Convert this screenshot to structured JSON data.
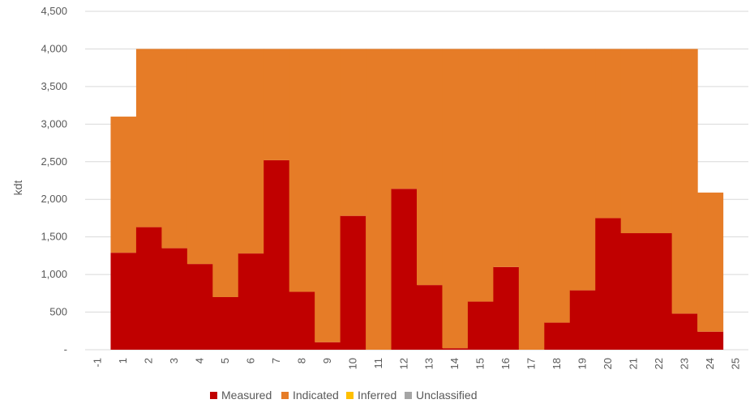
{
  "chart_data": {
    "type": "bar",
    "stacked": true,
    "ylabel": "kdt",
    "ylim": [
      0,
      4500
    ],
    "yticks": [
      0,
      500,
      1000,
      1500,
      2000,
      2500,
      3000,
      3500,
      4000,
      4500
    ],
    "ytick_labels": [
      "-",
      "500",
      "1,000",
      "1,500",
      "2,000",
      "2,500",
      "3,000",
      "3,500",
      "4,000",
      "4,500"
    ],
    "categories": [
      "-1",
      "1",
      "2",
      "3",
      "4",
      "5",
      "6",
      "7",
      "8",
      "9",
      "10",
      "11",
      "12",
      "13",
      "14",
      "15",
      "16",
      "17",
      "18",
      "19",
      "20",
      "21",
      "22",
      "23",
      "24",
      "25"
    ],
    "grid": true,
    "legend_position": "bottom",
    "series": [
      {
        "name": "Measured",
        "color": "#c00000",
        "values": [
          0,
          1290,
          1630,
          1350,
          1140,
          700,
          1280,
          2520,
          770,
          100,
          1780,
          0,
          2140,
          860,
          20,
          640,
          1100,
          0,
          360,
          790,
          1750,
          1550,
          1550,
          480,
          240,
          0
        ]
      },
      {
        "name": "Indicated",
        "color": "#e67c27",
        "values": [
          0,
          1810,
          2370,
          2650,
          2860,
          3300,
          2720,
          1480,
          3230,
          3900,
          2220,
          4000,
          1860,
          3140,
          3980,
          3360,
          2900,
          4000,
          3640,
          3210,
          2250,
          2450,
          2450,
          3520,
          1850,
          0
        ]
      },
      {
        "name": "Inferred",
        "color": "#ffc000",
        "values": [
          0,
          0,
          0,
          0,
          0,
          0,
          0,
          0,
          0,
          0,
          0,
          0,
          0,
          0,
          0,
          0,
          0,
          0,
          0,
          0,
          0,
          0,
          0,
          0,
          0,
          0
        ]
      },
      {
        "name": "Unclassified",
        "color": "#a5a5a5",
        "values": [
          0,
          0,
          0,
          0,
          0,
          0,
          0,
          0,
          0,
          0,
          0,
          0,
          0,
          0,
          0,
          0,
          0,
          0,
          0,
          0,
          0,
          0,
          0,
          0,
          0,
          0
        ]
      }
    ]
  }
}
